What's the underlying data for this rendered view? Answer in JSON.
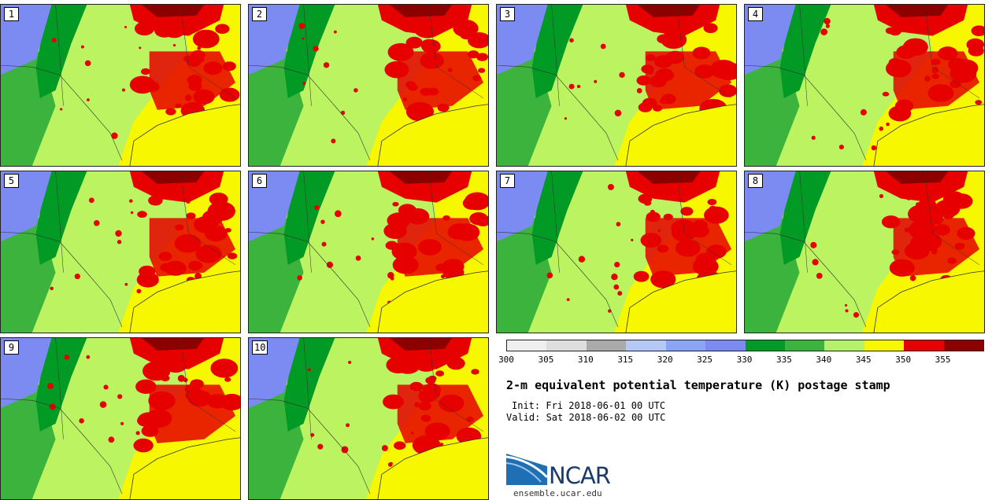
{
  "title": "2-m equivalent potential temperature (K) postage stamp",
  "init_line": "Init: Fri 2018-06-01 00 UTC",
  "valid_line": "Valid: Sat 2018-06-02 00 UTC",
  "logo": {
    "text": "NCAR",
    "site": "ensemble.ucar.edu"
  },
  "members": [
    "1",
    "2",
    "3",
    "4",
    "5",
    "6",
    "7",
    "8",
    "9",
    "10"
  ],
  "colorbar": {
    "ticks": [
      "300",
      "305",
      "310",
      "315",
      "320",
      "325",
      "330",
      "335",
      "340",
      "345",
      "350",
      "355"
    ],
    "colors": [
      "#efefef",
      "#dedede",
      "#aaaaaa",
      "#b4c8fa",
      "#8aa4f8",
      "#7b8bf2",
      "#009a24",
      "#3cb33c",
      "#b4f26c",
      "#f7f700",
      "#e60000",
      "#8c0000"
    ]
  },
  "map_colors": {
    "high_plains": "#7b8bf2",
    "mountains": "#009a24",
    "lower_green": "#3cb33c",
    "light_green": "#b4f26c",
    "yellow": "#f7f700",
    "red": "#e60000",
    "dark_red": "#8c0000",
    "borders": "#333333"
  }
}
